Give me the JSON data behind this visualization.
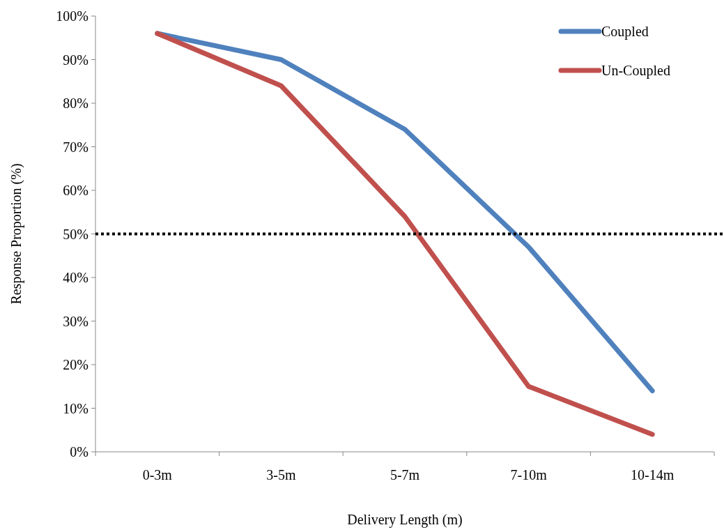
{
  "chart_data": {
    "type": "line",
    "xlabel": "Delivery Length (m)",
    "ylabel": "Response Proportion (%)",
    "categories": [
      "0-3m",
      "3-5m",
      "5-7m",
      "7-10m",
      "10-14m"
    ],
    "series": [
      {
        "name": "Coupled",
        "color": "#4f81bd",
        "values": [
          96,
          90,
          74,
          47,
          14
        ]
      },
      {
        "name": "Un-Coupled",
        "color": "#c0504d",
        "values": [
          96,
          84,
          54,
          15,
          4
        ]
      }
    ],
    "ylim": [
      0,
      100
    ],
    "yticks": [
      {
        "value": 0,
        "label": "0%"
      },
      {
        "value": 10,
        "label": "10%"
      },
      {
        "value": 20,
        "label": "20%"
      },
      {
        "value": 30,
        "label": "30%"
      },
      {
        "value": 40,
        "label": "40%"
      },
      {
        "value": 50,
        "label": "50%"
      },
      {
        "value": 60,
        "label": "60%"
      },
      {
        "value": 70,
        "label": "70%"
      },
      {
        "value": 80,
        "label": "80%"
      },
      {
        "value": 90,
        "label": "90%"
      },
      {
        "value": 100,
        "label": "100%"
      }
    ],
    "ref_lines": [
      {
        "axis": "y",
        "value": 50,
        "color": "#000000",
        "line_style": "dotted"
      }
    ],
    "legend": "top right",
    "grid": false,
    "line_style": "solid"
  }
}
